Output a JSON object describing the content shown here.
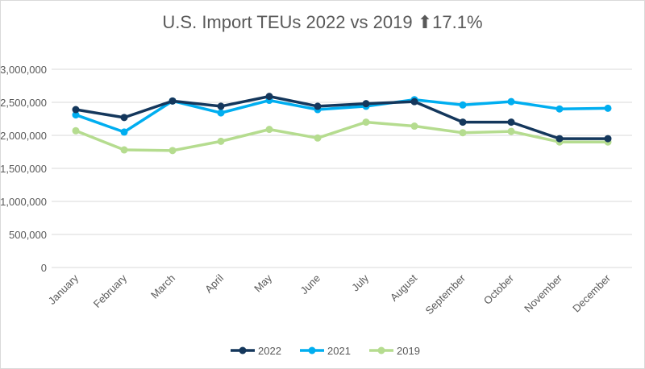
{
  "chart_data": {
    "type": "line",
    "title": "U.S. Import TEUs 2022 vs 2019",
    "title_badge": {
      "icon": "arrow-up-icon",
      "text": "17.1%"
    },
    "categories": [
      "January",
      "February",
      "March",
      "April",
      "May",
      "June",
      "July",
      "August",
      "September",
      "October",
      "November",
      "December"
    ],
    "ylim": [
      0,
      3000000
    ],
    "yticks": [
      "0",
      "500,000",
      "1,000,000",
      "1,500,000",
      "2,000,000",
      "2,500,000",
      "3,000,000"
    ],
    "grid": true,
    "legend": "bottom",
    "series": [
      {
        "name": "2022",
        "color": "#14375c",
        "values": [
          2390000,
          2270000,
          2520000,
          2440000,
          2590000,
          2440000,
          2480000,
          2510000,
          2200000,
          2200000,
          1950000,
          1950000
        ]
      },
      {
        "name": "2021",
        "color": "#00aef0",
        "values": [
          2310000,
          2050000,
          2520000,
          2340000,
          2530000,
          2390000,
          2440000,
          2540000,
          2460000,
          2510000,
          2400000,
          2410000
        ]
      },
      {
        "name": "2019",
        "color": "#b5dc8f",
        "values": [
          2070000,
          1780000,
          1770000,
          1910000,
          2090000,
          1960000,
          2200000,
          2140000,
          2040000,
          2060000,
          1900000,
          1900000
        ]
      }
    ]
  }
}
